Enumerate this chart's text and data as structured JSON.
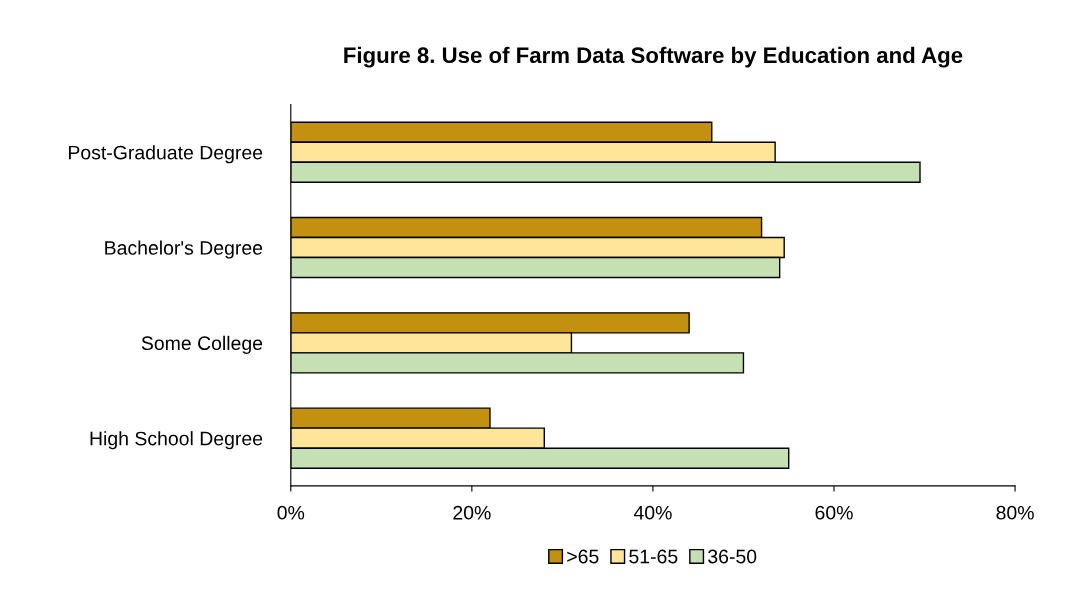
{
  "chart_data": {
    "type": "bar",
    "orientation": "horizontal",
    "title": "Figure 8. Use of Farm Data Software by Education and Age",
    "categories": [
      "Post-Graduate Degree",
      "Bachelor's Degree",
      "Some College",
      "High School Degree"
    ],
    "series": [
      {
        "name": ">65",
        "color": "#c4900f",
        "values": [
          46.5,
          52,
          44,
          22
        ]
      },
      {
        "name": "51-65",
        "color": "#fee599",
        "values": [
          53.5,
          54.5,
          31,
          28
        ]
      },
      {
        "name": "36-50",
        "color": "#c5e0b3",
        "values": [
          69.5,
          54,
          50,
          55
        ]
      }
    ],
    "xlim": [
      0,
      80
    ],
    "xticks": [
      {
        "value": 0,
        "label": "0%"
      },
      {
        "value": 20,
        "label": "20%"
      },
      {
        "value": 40,
        "label": "40%"
      },
      {
        "value": 60,
        "label": "60%"
      },
      {
        "value": 80,
        "label": "80%"
      }
    ],
    "grid": false,
    "legend": "bottom"
  }
}
